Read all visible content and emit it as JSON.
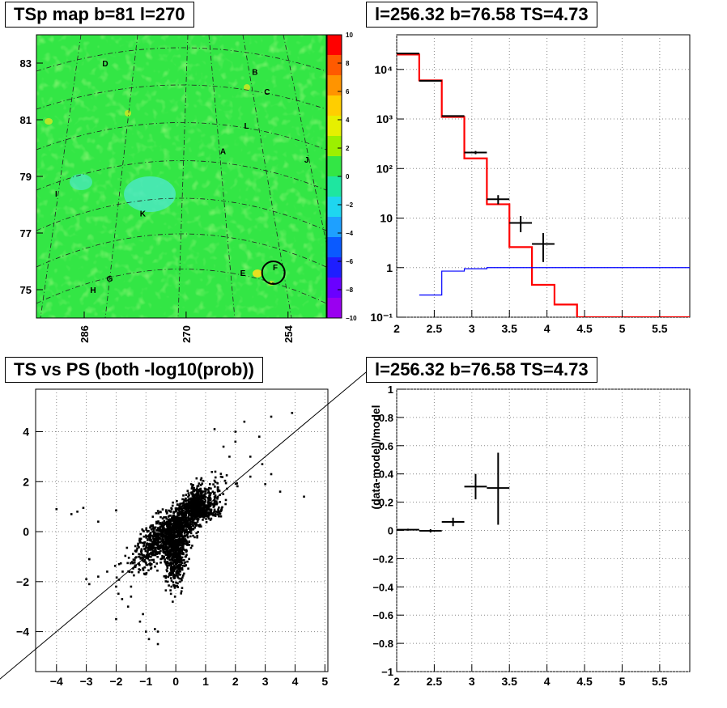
{
  "chart_data": [
    {
      "type": "heatmap",
      "title": "TSp map b=81 l=270",
      "y_ticks": [
        {
          "v": 83,
          "label": "83"
        },
        {
          "v": 81,
          "label": "81"
        },
        {
          "v": 79,
          "label": "79"
        },
        {
          "v": 77,
          "label": "77"
        },
        {
          "v": 75,
          "label": "75"
        }
      ],
      "x_ticks": [
        {
          "v": 286,
          "label": "286"
        },
        {
          "v": 270,
          "label": "270"
        },
        {
          "v": 254,
          "label": "254"
        }
      ],
      "xlim": [
        293.5,
        248
      ],
      "ylim": [
        74,
        84
      ],
      "colorbar": {
        "min": -10,
        "max": 10,
        "ticks": [
          "10",
          "8",
          "6",
          "4",
          "2",
          "0",
          "−2",
          "−4",
          "−6",
          "−8",
          "−10"
        ]
      },
      "sources": [
        {
          "id": "D",
          "lon": 282.7,
          "lat": 83.0
        },
        {
          "id": "B",
          "lon": 259.2,
          "lat": 82.7
        },
        {
          "id": "C",
          "lon": 257.3,
          "lat": 82.0
        },
        {
          "id": "L",
          "lon": 260.5,
          "lat": 80.8
        },
        {
          "id": "A",
          "lon": 264.2,
          "lat": 79.9
        },
        {
          "id": "J",
          "lon": 251.1,
          "lat": 79.6
        },
        {
          "id": "I",
          "lon": 290.4,
          "lat": 78.4
        },
        {
          "id": "K",
          "lon": 276.8,
          "lat": 77.7
        },
        {
          "id": "E",
          "lon": 261.1,
          "lat": 75.6
        },
        {
          "id": "F",
          "lon": 256.0,
          "lat": 75.8
        },
        {
          "id": "G",
          "lon": 282.0,
          "lat": 75.4
        },
        {
          "id": "H",
          "lon": 284.6,
          "lat": 75.0
        }
      ],
      "circle": {
        "lon": 256.3,
        "lat": 75.6
      }
    },
    {
      "type": "line",
      "title": "l=256.32 b=76.58 TS=4.73",
      "xlim": [
        2,
        5.9
      ],
      "ylim": [
        0.1,
        50000
      ],
      "yscale": "log",
      "x_ticks": [
        "2",
        "2.5",
        "3",
        "3.5",
        "4",
        "4.5",
        "5",
        "5.5"
      ],
      "y_ticks": [
        {
          "v": 0.1,
          "label": "10⁻¹"
        },
        {
          "v": 1,
          "label": "1"
        },
        {
          "v": 10,
          "label": "10"
        },
        {
          "v": 100,
          "label": "10²"
        },
        {
          "v": 1000,
          "label": "10³"
        },
        {
          "v": 10000,
          "label": "10⁴"
        }
      ],
      "series": [
        {
          "color": "#ff0000",
          "bins": [
            [
              2.0,
              2.3,
              20000
            ],
            [
              2.3,
              2.6,
              6000
            ],
            [
              2.6,
              2.9,
              1100
            ],
            [
              2.9,
              3.2,
              160
            ],
            [
              3.2,
              3.5,
              19
            ],
            [
              3.5,
              3.8,
              2.6
            ],
            [
              3.8,
              4.1,
              0.45
            ],
            [
              4.1,
              4.4,
              0.18
            ],
            [
              4.4,
              5.9,
              0.1
            ]
          ]
        },
        {
          "color": "#0000ff",
          "bins": [
            [
              2.3,
              2.6,
              0.28
            ],
            [
              2.6,
              2.9,
              0.85
            ],
            [
              2.9,
              3.2,
              0.95
            ],
            [
              3.2,
              5.9,
              1.0
            ]
          ]
        }
      ],
      "points": [
        {
          "x": 2.15,
          "y": 21000,
          "xerr": 0.15,
          "lo": 20850,
          "hi": 21150
        },
        {
          "x": 2.45,
          "y": 5900,
          "xerr": 0.15,
          "lo": 5820,
          "hi": 5980
        },
        {
          "x": 2.75,
          "y": 1150,
          "xerr": 0.15,
          "lo": 1115,
          "hi": 1185
        },
        {
          "x": 3.05,
          "y": 210,
          "xerr": 0.15,
          "lo": 195,
          "hi": 226
        },
        {
          "x": 3.35,
          "y": 24,
          "xerr": 0.15,
          "lo": 19,
          "hi": 29
        },
        {
          "x": 3.65,
          "y": 8,
          "xerr": 0.15,
          "lo": 5.2,
          "hi": 11
        },
        {
          "x": 3.95,
          "y": 3,
          "xerr": 0.15,
          "lo": 1.3,
          "hi": 5
        }
      ]
    },
    {
      "type": "scatter",
      "title": "TS vs PS (both -log10(prob))",
      "xlim": [
        -4.7,
        5.1
      ],
      "ylim": [
        -5.6,
        5.7
      ],
      "x_ticks": [
        "−4",
        "−3",
        "−2",
        "−1",
        "0",
        "1",
        "2",
        "3",
        "4",
        "5"
      ],
      "y_ticks": [
        {
          "v": 4,
          "label": "4"
        },
        {
          "v": 2,
          "label": "2"
        },
        {
          "v": 0,
          "label": "0"
        },
        {
          "v": -2,
          "label": "−2"
        },
        {
          "v": -4,
          "label": "−4"
        }
      ],
      "diagonal": true,
      "outliers": [
        [
          3.9,
          4.75
        ],
        [
          4.3,
          1.4
        ],
        [
          3.2,
          4.6
        ],
        [
          2.3,
          4.4
        ],
        [
          2.0,
          4.0
        ],
        [
          1.3,
          4.1
        ],
        [
          2.8,
          3.8
        ],
        [
          1.6,
          3.4
        ],
        [
          2.5,
          3.0
        ],
        [
          3.2,
          2.3
        ],
        [
          2.9,
          2.7
        ],
        [
          3.5,
          1.6
        ],
        [
          3.0,
          1.9
        ],
        [
          2.5,
          2.2
        ],
        [
          2.0,
          3.6
        ],
        [
          1.8,
          3.0
        ],
        [
          -4.0,
          0.9
        ],
        [
          -3.1,
          0.95
        ],
        [
          -3.3,
          0.8
        ],
        [
          -2.0,
          0.85
        ],
        [
          -2.6,
          0.4
        ],
        [
          -3.5,
          0.7
        ],
        [
          -2.9,
          -1.1
        ],
        [
          -3.0,
          -1.9
        ],
        [
          -2.9,
          -2.1
        ],
        [
          -2.3,
          -1.6
        ],
        [
          -2.0,
          -2.2
        ],
        [
          -2.0,
          -3.5
        ],
        [
          -1.6,
          -3.0
        ],
        [
          -1.5,
          -2.2
        ],
        [
          -1.8,
          -2.7
        ],
        [
          -1.2,
          -3.6
        ],
        [
          -0.9,
          -4.3
        ],
        [
          -1.0,
          -4.0
        ],
        [
          -0.7,
          -3.9
        ],
        [
          -0.6,
          -4.0
        ],
        [
          -1.1,
          -3.3
        ],
        [
          -1.5,
          -2.6
        ],
        [
          -2.6,
          -1.8
        ],
        [
          -1.9,
          -1.3
        ],
        [
          -0.6,
          -4.5
        ]
      ]
    },
    {
      "type": "scatter",
      "title": "l=256.32 b=76.58 TS=4.73",
      "ylabel": "(data-model)/model",
      "xlim": [
        2,
        5.9
      ],
      "ylim": [
        -1,
        1
      ],
      "x_ticks": [
        "2",
        "2.5",
        "3",
        "3.5",
        "4",
        "4.5",
        "5",
        "5.5"
      ],
      "y_ticks": [
        {
          "v": 1,
          "label": "1"
        },
        {
          "v": 0.8,
          "label": "0.8"
        },
        {
          "v": 0.6,
          "label": "0.6"
        },
        {
          "v": 0.4,
          "label": "0.4"
        },
        {
          "v": 0.2,
          "label": "0.2"
        },
        {
          "v": 0,
          "label": "0"
        },
        {
          "v": -0.2,
          "label": "−0.2"
        },
        {
          "v": -0.4,
          "label": "−0.4"
        },
        {
          "v": -0.6,
          "label": "−0.6"
        },
        {
          "v": -0.8,
          "label": "−0.8"
        },
        {
          "v": -1,
          "label": "−1"
        }
      ],
      "points": [
        {
          "x": 2.15,
          "y": 0.005,
          "xerr": 0.15,
          "lo": -0.002,
          "hi": 0.012
        },
        {
          "x": 2.45,
          "y": -0.003,
          "xerr": 0.15,
          "lo": -0.015,
          "hi": 0.009
        },
        {
          "x": 2.75,
          "y": 0.06,
          "xerr": 0.15,
          "lo": 0.03,
          "hi": 0.09
        },
        {
          "x": 3.05,
          "y": 0.31,
          "xerr": 0.15,
          "lo": 0.22,
          "hi": 0.4
        },
        {
          "x": 3.35,
          "y": 0.3,
          "xerr": 0.15,
          "lo": 0.04,
          "hi": 0.55
        }
      ]
    }
  ]
}
